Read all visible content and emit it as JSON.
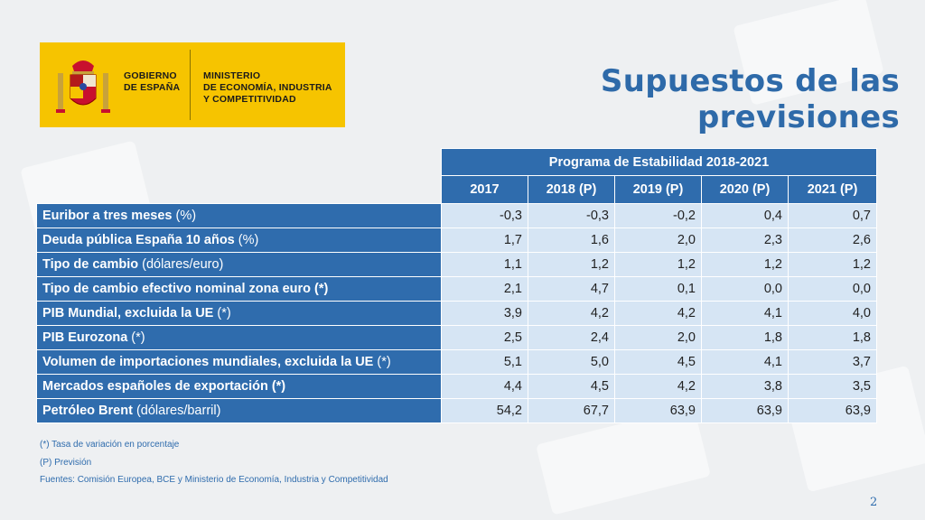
{
  "logo": {
    "gobierno": [
      "GOBIERNO",
      "DE ESPAÑA"
    ],
    "ministerio": [
      "MINISTERIO",
      "DE ECONOMÍA, INDUSTRIA",
      "Y COMPETITIVIDAD"
    ],
    "brand_color": "#f6c400"
  },
  "title": "Supuestos de las previsiones",
  "table": {
    "group_header": "Programa de Estabilidad 2018-2021",
    "columns": [
      "2017",
      "2018 (P)",
      "2019 (P)",
      "2020 (P)",
      "2021 (P)"
    ],
    "rows": [
      {
        "label": "Euribor a tres meses",
        "suffix": " (%)",
        "values": [
          "-0,3",
          "-0,3",
          "-0,2",
          "0,4",
          "0,7"
        ]
      },
      {
        "label": "Deuda pública España 10 años",
        "suffix": " (%)",
        "values": [
          "1,7",
          "1,6",
          "2,0",
          "2,3",
          "2,6"
        ]
      },
      {
        "label": "Tipo de cambio",
        "suffix": " (dólares/euro)",
        "values": [
          "1,1",
          "1,2",
          "1,2",
          "1,2",
          "1,2"
        ]
      },
      {
        "label": "Tipo de cambio efectivo nominal zona euro (*)",
        "suffix": "",
        "values": [
          "2,1",
          "4,7",
          "0,1",
          "0,0",
          "0,0"
        ]
      },
      {
        "label": "PIB Mundial, excluida la UE",
        "suffix": " (*)",
        "values": [
          "3,9",
          "4,2",
          "4,2",
          "4,1",
          "4,0"
        ]
      },
      {
        "label": "PIB Eurozona",
        "suffix": " (*)",
        "values": [
          "2,5",
          "2,4",
          "2,0",
          "1,8",
          "1,8"
        ]
      },
      {
        "label": "Volumen de importaciones mundiales, excluida la UE",
        "suffix": " (*)",
        "values": [
          "5,1",
          "5,0",
          "4,5",
          "4,1",
          "3,7"
        ]
      },
      {
        "label": "Mercados españoles de exportación (*)",
        "suffix": "",
        "values": [
          "4,4",
          "4,5",
          "4,2",
          "3,8",
          "3,5"
        ]
      },
      {
        "label": "Petróleo Brent",
        "suffix": " (dólares/barril)",
        "values": [
          "54,2",
          "67,7",
          "63,9",
          "63,9",
          "63,9"
        ]
      }
    ]
  },
  "notes": [
    "(*) Tasa de variación en porcentaje",
    "(P) Previsión",
    "Fuentes: Comisión Europea, BCE y Ministerio de Economía, Industria y Competitividad"
  ],
  "page_number": "2",
  "colors": {
    "header_blue": "#2f6cad",
    "cell_light": "#d6e5f4",
    "title_blue": "#2e6aa9"
  }
}
